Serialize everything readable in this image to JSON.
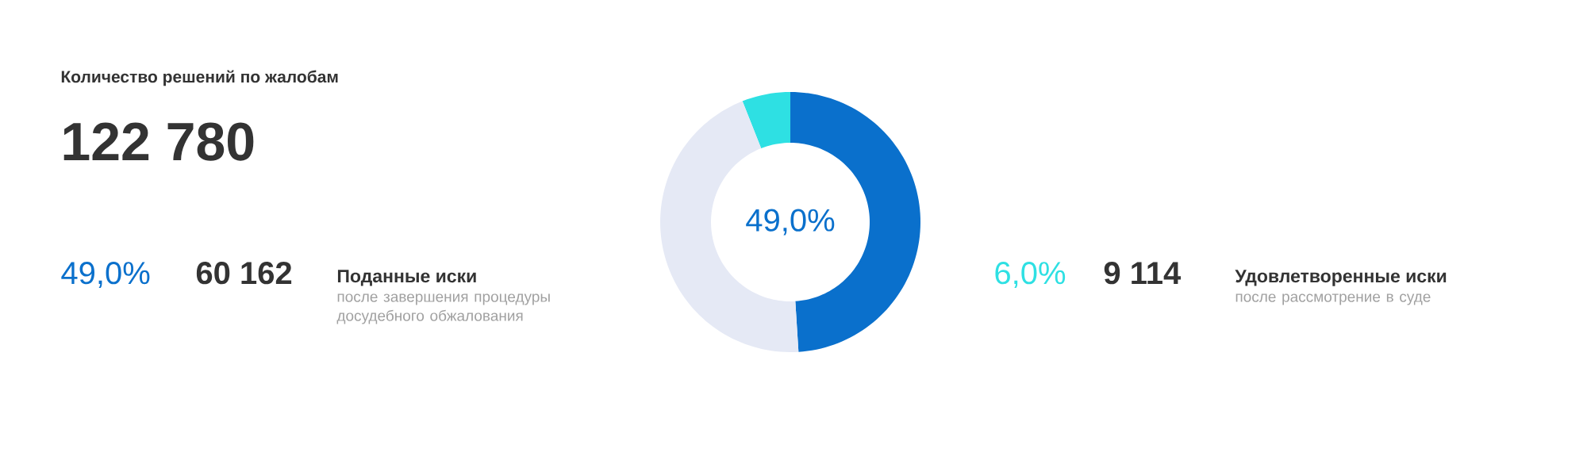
{
  "chart_data": {
    "type": "donut",
    "title": "Количество решений по жалобам",
    "subtitle": "122 780",
    "categories": [
      null,
      null,
      null
    ],
    "values": [
      6,
      49,
      45
    ],
    "colors": [
      "#2ee0e3",
      "#0a70cc",
      "#e5e9f5"
    ],
    "annotations": [
      "49,0%",
      "49,0%",
      "60 162",
      "Поданные  иски",
      "после завершения процедуры досудебного обжалования",
      "6,0%",
      "9 114",
      "Удовлетворенные иски",
      "после рассмотрение в суде"
    ]
  }
}
